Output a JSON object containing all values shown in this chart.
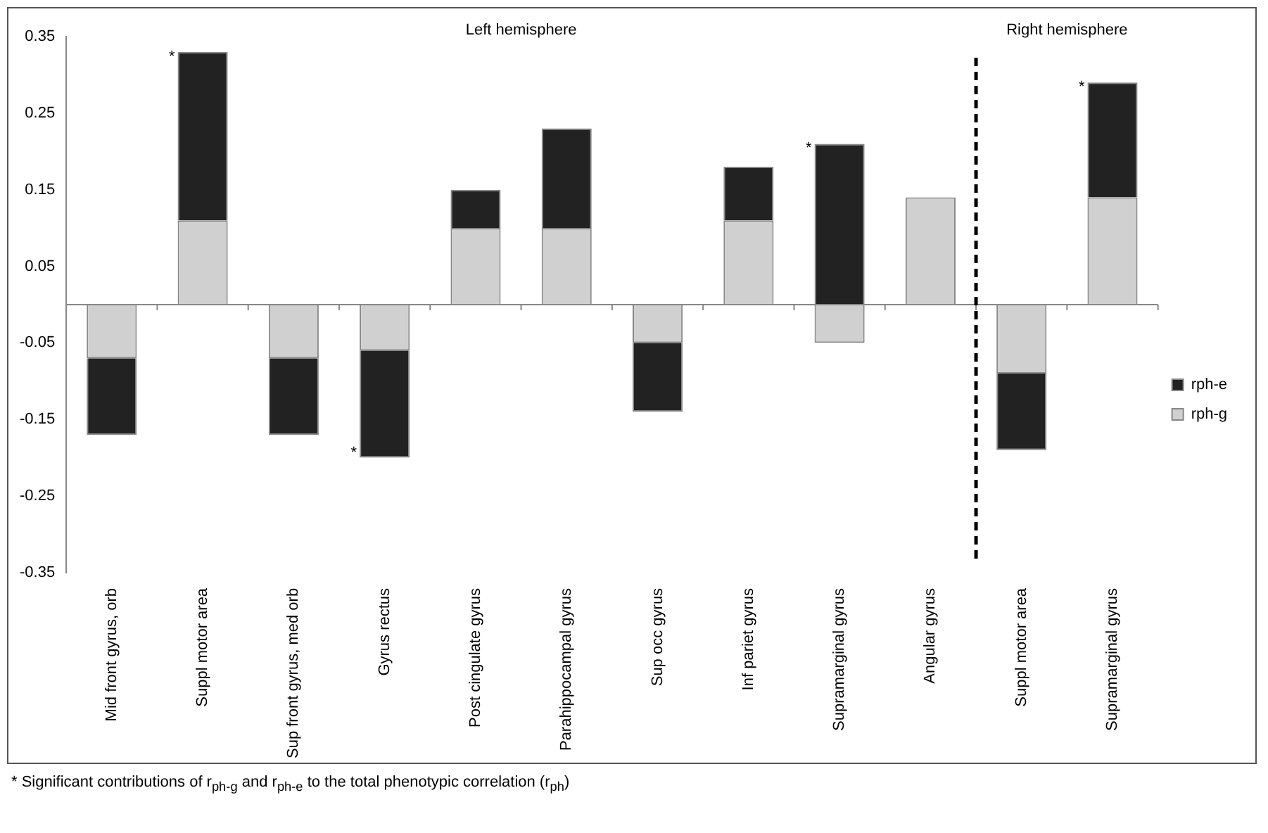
{
  "chart_data": {
    "type": "bar",
    "stacked": true,
    "categories": [
      "Mid front gyrus, orb",
      "Suppl motor area",
      "Sup front gyrus, med orb",
      "Gyrus rectus",
      "Post cingulate gyrus",
      "Parahippocampal gyrus",
      "Sup occ gyrus",
      "Inf pariet gyrus",
      "Supramarginal gyrus",
      "Angular gyrus",
      "Suppl motor area",
      "Supramarginal gyrus"
    ],
    "series": [
      {
        "name": "rph-g",
        "color": "#d0d0d0",
        "values": [
          -0.07,
          0.11,
          -0.07,
          -0.06,
          0.1,
          0.1,
          -0.05,
          0.11,
          -0.05,
          0.14,
          -0.09,
          0.14
        ]
      },
      {
        "name": "rph-e",
        "color": "#222222",
        "values": [
          -0.1,
          0.22,
          -0.1,
          -0.14,
          0.05,
          0.13,
          -0.09,
          0.07,
          0.21,
          0,
          -0.1,
          0.15
        ],
        "value_labels": [
          null,
          "*",
          null,
          "*",
          null,
          null,
          null,
          null,
          "*",
          null,
          null,
          "*"
        ]
      }
    ],
    "ylim": [
      -0.35,
      0.35
    ],
    "yticks": [
      -0.35,
      -0.25,
      -0.15,
      -0.05,
      0.05,
      0.15,
      0.25,
      0.35
    ],
    "legend": "right",
    "grid": false,
    "annotations": [
      "Left hemisphere",
      "Right hemisphere",
      "* Significant contributions of r$_{ph-g}$ and r$_{ph-e}$ to the total phenotypic correlation (r$_{ph}$)"
    ]
  }
}
